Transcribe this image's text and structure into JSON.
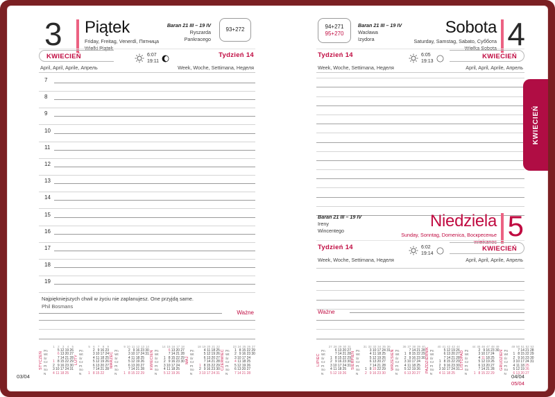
{
  "cover": {
    "tab_label": "KWIECIEŃ"
  },
  "colors": {
    "accent_red": "#c00b41",
    "pink_bar": "#ec6282",
    "cover_maroon": "#7b2023",
    "tab_crimson": "#b00d44"
  },
  "left_page": {
    "day_number": "3",
    "day_name": "Piątek",
    "day_translations": "Friday, Freitag, Venerdì, Пятница",
    "day_holiday": "Wielki Piątek",
    "zodiac": "Baran 21 III – 19 IV",
    "namedays": [
      "Ryszarda",
      "Pankracego"
    ],
    "day_counter": "93+272",
    "month_name": "KWIECIEŃ",
    "month_translations": "April, April, Aprile, Апрель",
    "week_label": "Tydzień 14",
    "week_translations": "Week, Woche, Settimana, Неделя",
    "sunrise": "6:07",
    "sunset": "19:11",
    "hours": [
      "7",
      "8",
      "9",
      "10",
      "11",
      "12",
      "13",
      "14",
      "15",
      "16",
      "17",
      "18",
      "19"
    ],
    "quote": "Najpiękniejszych chwil w życiu nie zaplanujesz. One przyjdą same.",
    "quote_author": "Phil Bosmans",
    "important_label": "Ważne",
    "page_number": "03/04"
  },
  "right_page": {
    "saturday": {
      "day_number": "4",
      "day_name": "Sobota",
      "day_translations": "Saturday, Samstag, Sabato, Суббота",
      "day_holiday": "Wielka Sobota",
      "zodiac": "Baran 21 III – 19 IV",
      "namedays": [
        "Wacława",
        "Izydora"
      ],
      "day_counter_black": "94+271",
      "day_counter_red": "95+270",
      "month_name": "KWIECIEŃ",
      "month_translations": "April, April, Aprile, Апрель",
      "week_label": "Tydzień 14",
      "week_translations": "Week, Woche, Settimana, Неделя",
      "sunrise": "6:05",
      "sunset": "19:13"
    },
    "sunday": {
      "day_number": "5",
      "day_name": "Niedziela",
      "day_translations": "Sunday, Sonntag, Domenica, Воскресенье",
      "day_holiday": "Wielkanoc",
      "zodiac": "Baran 21 III – 19 IV",
      "namedays": [
        "Ireny",
        "Wincentego"
      ],
      "month_name": "KWIECIEŃ",
      "month_translations": "April, April, Aprile, Апрель",
      "week_label": "Tydzień 14",
      "week_translations": "Week, Woche, Settimana, Неделя",
      "sunrise": "6:02",
      "sunset": "19:14"
    },
    "important_label": "Ważne",
    "page_number_black": "04/04",
    "page_number_red": "05/04"
  },
  "mini_calendars": {
    "weekday_labels": [
      "Pn",
      "Wt",
      "Śr",
      "Cz",
      "Pt",
      "So",
      "N"
    ],
    "left": [
      {
        "name": "STYCZEŃ",
        "weeks": [
          "1",
          "2",
          "3",
          "4",
          "5"
        ],
        "red": [
          1,
          4,
          6,
          11,
          18,
          25
        ],
        "rows": [
          [
            "",
            "5",
            "12",
            "19",
            "26"
          ],
          [
            "",
            "6",
            "13",
            "20",
            "27"
          ],
          [
            "",
            "7",
            "14",
            "21",
            "28"
          ],
          [
            "1",
            "8",
            "15",
            "22",
            "29"
          ],
          [
            "2",
            "9",
            "16",
            "23",
            "30"
          ],
          [
            "3",
            "10",
            "17",
            "24",
            "31"
          ],
          [
            "4",
            "11",
            "18",
            "25",
            ""
          ]
        ]
      },
      {
        "name": "LUTY",
        "weeks": [
          "5",
          "6",
          "7",
          "8",
          "9"
        ],
        "red": [
          1,
          8,
          15,
          22
        ],
        "rows": [
          [
            "",
            "2",
            "9",
            "16",
            "23"
          ],
          [
            "",
            "3",
            "10",
            "17",
            "24"
          ],
          [
            "",
            "4",
            "11",
            "18",
            "25"
          ],
          [
            "",
            "5",
            "12",
            "19",
            "26"
          ],
          [
            "",
            "6",
            "13",
            "20",
            "27"
          ],
          [
            "",
            "7",
            "14",
            "21",
            "28"
          ],
          [
            "1",
            "8",
            "15",
            "22",
            ""
          ]
        ]
      },
      {
        "name": "MARZEC",
        "weeks": [
          "9",
          "10",
          "11",
          "12",
          "13",
          "14"
        ],
        "red": [
          1,
          8,
          15,
          22,
          29
        ],
        "rows": [
          [
            "",
            "2",
            "9",
            "16",
            "23",
            "30"
          ],
          [
            "",
            "3",
            "10",
            "17",
            "24",
            "31"
          ],
          [
            "",
            "4",
            "11",
            "18",
            "25",
            ""
          ],
          [
            "",
            "5",
            "12",
            "19",
            "26",
            ""
          ],
          [
            "",
            "6",
            "13",
            "20",
            "27",
            ""
          ],
          [
            "",
            "7",
            "14",
            "21",
            "28",
            ""
          ],
          [
            "1",
            "8",
            "15",
            "22",
            "29",
            ""
          ]
        ]
      },
      {
        "name": "KWIECIEŃ",
        "weeks": [
          "14",
          "15",
          "16",
          "17",
          "18"
        ],
        "red": [
          5,
          6,
          12,
          19,
          26
        ],
        "rows": [
          [
            "",
            "6",
            "13",
            "20",
            "27"
          ],
          [
            "",
            "7",
            "14",
            "21",
            "28"
          ],
          [
            "1",
            "8",
            "15",
            "22",
            "29"
          ],
          [
            "2",
            "9",
            "16",
            "23",
            "30"
          ],
          [
            "3",
            "10",
            "17",
            "24",
            ""
          ],
          [
            "4",
            "11",
            "18",
            "25",
            ""
          ],
          [
            "5",
            "12",
            "19",
            "26",
            ""
          ]
        ]
      },
      {
        "name": "MAJ",
        "weeks": [
          "18",
          "19",
          "20",
          "21",
          "22"
        ],
        "red": [
          1,
          3,
          10,
          17,
          24,
          31
        ],
        "rows": [
          [
            "",
            "4",
            "11",
            "18",
            "25"
          ],
          [
            "",
            "5",
            "12",
            "19",
            "26"
          ],
          [
            "",
            "6",
            "13",
            "20",
            "27"
          ],
          [
            "",
            "7",
            "14",
            "21",
            "28"
          ],
          [
            "1",
            "8",
            "15",
            "22",
            "29"
          ],
          [
            "2",
            "9",
            "16",
            "23",
            "30"
          ],
          [
            "3",
            "10",
            "17",
            "24",
            "31"
          ]
        ]
      },
      {
        "name": "CZERWIEC",
        "weeks": [
          "23",
          "24",
          "25",
          "26",
          "27"
        ],
        "red": [
          4,
          7,
          14,
          21,
          28
        ],
        "rows": [
          [
            "1",
            "8",
            "15",
            "22",
            "29"
          ],
          [
            "2",
            "9",
            "16",
            "23",
            "30"
          ],
          [
            "3",
            "10",
            "17",
            "24",
            ""
          ],
          [
            "4",
            "11",
            "18",
            "25",
            ""
          ],
          [
            "5",
            "12",
            "19",
            "26",
            ""
          ],
          [
            "6",
            "13",
            "20",
            "27",
            ""
          ],
          [
            "7",
            "14",
            "21",
            "28",
            ""
          ]
        ]
      }
    ],
    "right": [
      {
        "name": "LIPIEC",
        "weeks": [
          "27",
          "28",
          "29",
          "30",
          "31"
        ],
        "red": [
          5,
          12,
          19,
          26
        ],
        "rows": [
          [
            "",
            "6",
            "13",
            "20",
            "27"
          ],
          [
            "",
            "7",
            "14",
            "21",
            "28"
          ],
          [
            "1",
            "8",
            "15",
            "22",
            "29"
          ],
          [
            "2",
            "9",
            "16",
            "23",
            "30"
          ],
          [
            "3",
            "10",
            "17",
            "24",
            "31"
          ],
          [
            "4",
            "11",
            "18",
            "25",
            ""
          ],
          [
            "5",
            "12",
            "19",
            "26",
            ""
          ]
        ]
      },
      {
        "name": "SIERPIEŃ",
        "weeks": [
          "31",
          "32",
          "33",
          "34",
          "35",
          "36"
        ],
        "red": [
          2,
          9,
          15,
          16,
          23,
          30
        ],
        "rows": [
          [
            "",
            "3",
            "10",
            "17",
            "24",
            "31"
          ],
          [
            "",
            "4",
            "11",
            "18",
            "25",
            ""
          ],
          [
            "",
            "5",
            "12",
            "19",
            "26",
            ""
          ],
          [
            "",
            "6",
            "13",
            "20",
            "27",
            ""
          ],
          [
            "",
            "7",
            "14",
            "21",
            "28",
            ""
          ],
          [
            "1",
            "8",
            "15",
            "22",
            "29",
            ""
          ],
          [
            "2",
            "9",
            "16",
            "23",
            "30",
            ""
          ]
        ]
      },
      {
        "name": "WRZESIEŃ",
        "weeks": [
          "36",
          "37",
          "38",
          "39",
          "40"
        ],
        "red": [
          6,
          13,
          20,
          27
        ],
        "rows": [
          [
            "",
            "7",
            "14",
            "21",
            "28"
          ],
          [
            "1",
            "8",
            "15",
            "22",
            "29"
          ],
          [
            "2",
            "9",
            "16",
            "23",
            "30"
          ],
          [
            "3",
            "10",
            "17",
            "24",
            ""
          ],
          [
            "4",
            "11",
            "18",
            "25",
            ""
          ],
          [
            "5",
            "12",
            "19",
            "26",
            ""
          ],
          [
            "6",
            "13",
            "20",
            "27",
            ""
          ]
        ]
      },
      {
        "name": "PAŹDZIERNIK",
        "weeks": [
          "40",
          "41",
          "42",
          "43",
          "44"
        ],
        "red": [
          4,
          11,
          18,
          25
        ],
        "rows": [
          [
            "",
            "5",
            "12",
            "19",
            "26"
          ],
          [
            "",
            "6",
            "13",
            "20",
            "27"
          ],
          [
            "",
            "7",
            "14",
            "21",
            "28"
          ],
          [
            "1",
            "8",
            "15",
            "22",
            "29"
          ],
          [
            "2",
            "9",
            "16",
            "23",
            "30"
          ],
          [
            "3",
            "10",
            "17",
            "24",
            "31"
          ],
          [
            "4",
            "11",
            "18",
            "25",
            ""
          ]
        ]
      },
      {
        "name": "LISTOPAD",
        "weeks": [
          "44",
          "45",
          "46",
          "47",
          "48",
          "49"
        ],
        "red": [
          1,
          8,
          11,
          15,
          22,
          29
        ],
        "rows": [
          [
            "",
            "2",
            "9",
            "16",
            "23",
            "30"
          ],
          [
            "",
            "3",
            "10",
            "17",
            "24",
            ""
          ],
          [
            "",
            "4",
            "11",
            "18",
            "25",
            ""
          ],
          [
            "",
            "5",
            "12",
            "19",
            "26",
            ""
          ],
          [
            "",
            "6",
            "13",
            "20",
            "27",
            ""
          ],
          [
            "",
            "7",
            "14",
            "21",
            "28",
            ""
          ],
          [
            "1",
            "8",
            "15",
            "22",
            "29",
            ""
          ]
        ]
      },
      {
        "name": "GRUDZIEŃ",
        "weeks": [
          "49",
          "50",
          "51",
          "52",
          "53"
        ],
        "red": [
          6,
          13,
          20,
          25,
          26,
          27
        ],
        "rows": [
          [
            "",
            "7",
            "14",
            "21",
            "28"
          ],
          [
            "1",
            "8",
            "15",
            "22",
            "29"
          ],
          [
            "2",
            "9",
            "16",
            "23",
            "30"
          ],
          [
            "3",
            "10",
            "17",
            "24",
            "31"
          ],
          [
            "4",
            "11",
            "18",
            "25",
            ""
          ],
          [
            "5",
            "12",
            "19",
            "26",
            ""
          ],
          [
            "6",
            "13",
            "20",
            "27",
            ""
          ]
        ]
      }
    ]
  }
}
